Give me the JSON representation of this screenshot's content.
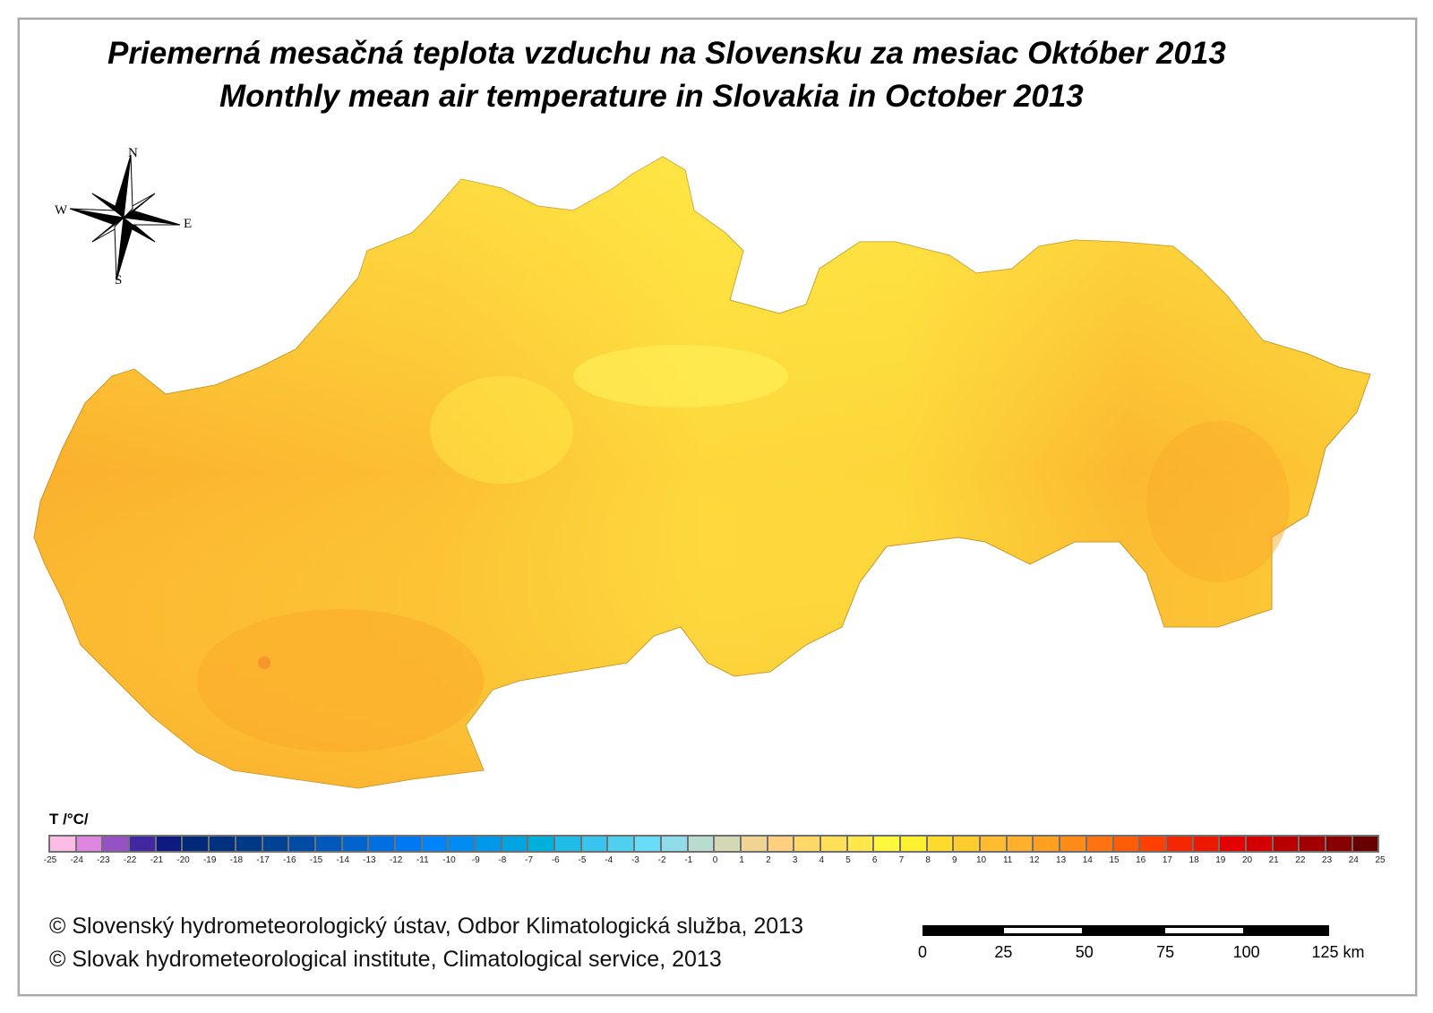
{
  "title_sk": "Priemerná mesačná teplota vzduchu na Slovensku za mesiac Október 2013",
  "title_en": "Monthly mean air temperature in Slovakia in October 2013",
  "compass": {
    "n": "N",
    "s": "S",
    "e": "E",
    "w": "W"
  },
  "legend": {
    "title": "T /°C/",
    "ticks": [
      "-25",
      "-24",
      "-23",
      "-22",
      "-21",
      "-20",
      "-19",
      "-18",
      "-17",
      "-16",
      "-15",
      "-14",
      "-13",
      "-12",
      "-11",
      "-10",
      "-9",
      "-8",
      "-7",
      "-6",
      "-5",
      "-4",
      "-3",
      "-2",
      "-1",
      "0",
      "1",
      "2",
      "3",
      "4",
      "5",
      "6",
      "7",
      "8",
      "9",
      "10",
      "11",
      "12",
      "13",
      "14",
      "15",
      "16",
      "17",
      "18",
      "19",
      "20",
      "21",
      "22",
      "23",
      "24",
      "25"
    ],
    "colors": [
      "#fbbde6",
      "#de86e0",
      "#9452c4",
      "#4228a0",
      "#0e1a80",
      "#002a78",
      "#00307e",
      "#003888",
      "#004294",
      "#004ca4",
      "#0058b8",
      "#0064cc",
      "#0070e0",
      "#0078f4",
      "#0084f8",
      "#008cf0",
      "#0098e8",
      "#00a4e0",
      "#00b0dc",
      "#20bce8",
      "#38c4ec",
      "#50d0f0",
      "#68dcf8",
      "#90dce8",
      "#b8dcd0",
      "#d4d8b4",
      "#f0d494",
      "#ffd080",
      "#ffd868",
      "#ffe058",
      "#ffe84c",
      "#fff83c",
      "#fff030",
      "#ffdc2c",
      "#ffcc30",
      "#ffbc30",
      "#ffb02c",
      "#ffa020",
      "#ff8c18",
      "#ff7410",
      "#ff5c08",
      "#ff4000",
      "#f42800",
      "#ec1800",
      "#e40000",
      "#d40000",
      "#b80000",
      "#a00000",
      "#880000",
      "#680000"
    ]
  },
  "map_colors": {
    "lowland": "#fbb02e",
    "midland": "#fdd33a",
    "highland": "#fff04a"
  },
  "copyright_sk": "© Slovenský hydrometeorologický ústav, Odbor Klimatologická služba, 2013",
  "copyright_en": "© Slovak hydrometeorological institute, Climatological service, 2013",
  "scale": {
    "labels": [
      "0",
      "25",
      "50",
      "75",
      "100",
      "125 km"
    ]
  }
}
